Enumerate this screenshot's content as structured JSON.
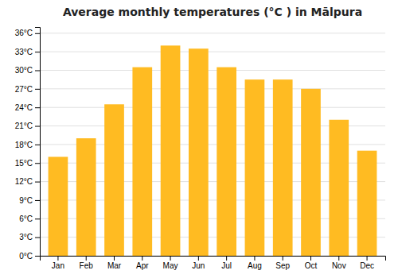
{
  "chart_data": {
    "type": "bar",
    "title": "Average monthly temperatures (°C ) in Mālpura",
    "categories": [
      "Jan",
      "Feb",
      "Mar",
      "Apr",
      "May",
      "Jun",
      "Jul",
      "Aug",
      "Sep",
      "Oct",
      "Nov",
      "Dec"
    ],
    "values": [
      16,
      19,
      24.5,
      30.5,
      34,
      33.5,
      30.5,
      28.5,
      28.5,
      27,
      22,
      17
    ],
    "color": "#FFBB22",
    "ylim": [
      0,
      37
    ],
    "yticks": [
      {
        "value": 0,
        "label": "0°C"
      },
      {
        "value": 3,
        "label": "3°C"
      },
      {
        "value": 6,
        "label": "6°C"
      },
      {
        "value": 9,
        "label": "9°C"
      },
      {
        "value": 12,
        "label": "12°C"
      },
      {
        "value": 15,
        "label": "15°C"
      },
      {
        "value": 18,
        "label": "18°C"
      },
      {
        "value": 21,
        "label": "21°C"
      },
      {
        "value": 24,
        "label": "24°C"
      },
      {
        "value": 27,
        "label": "27°C"
      },
      {
        "value": 30,
        "label": "30°C"
      },
      {
        "value": 33,
        "label": "33°C"
      },
      {
        "value": 36,
        "label": "36°C"
      }
    ],
    "grid": true
  }
}
